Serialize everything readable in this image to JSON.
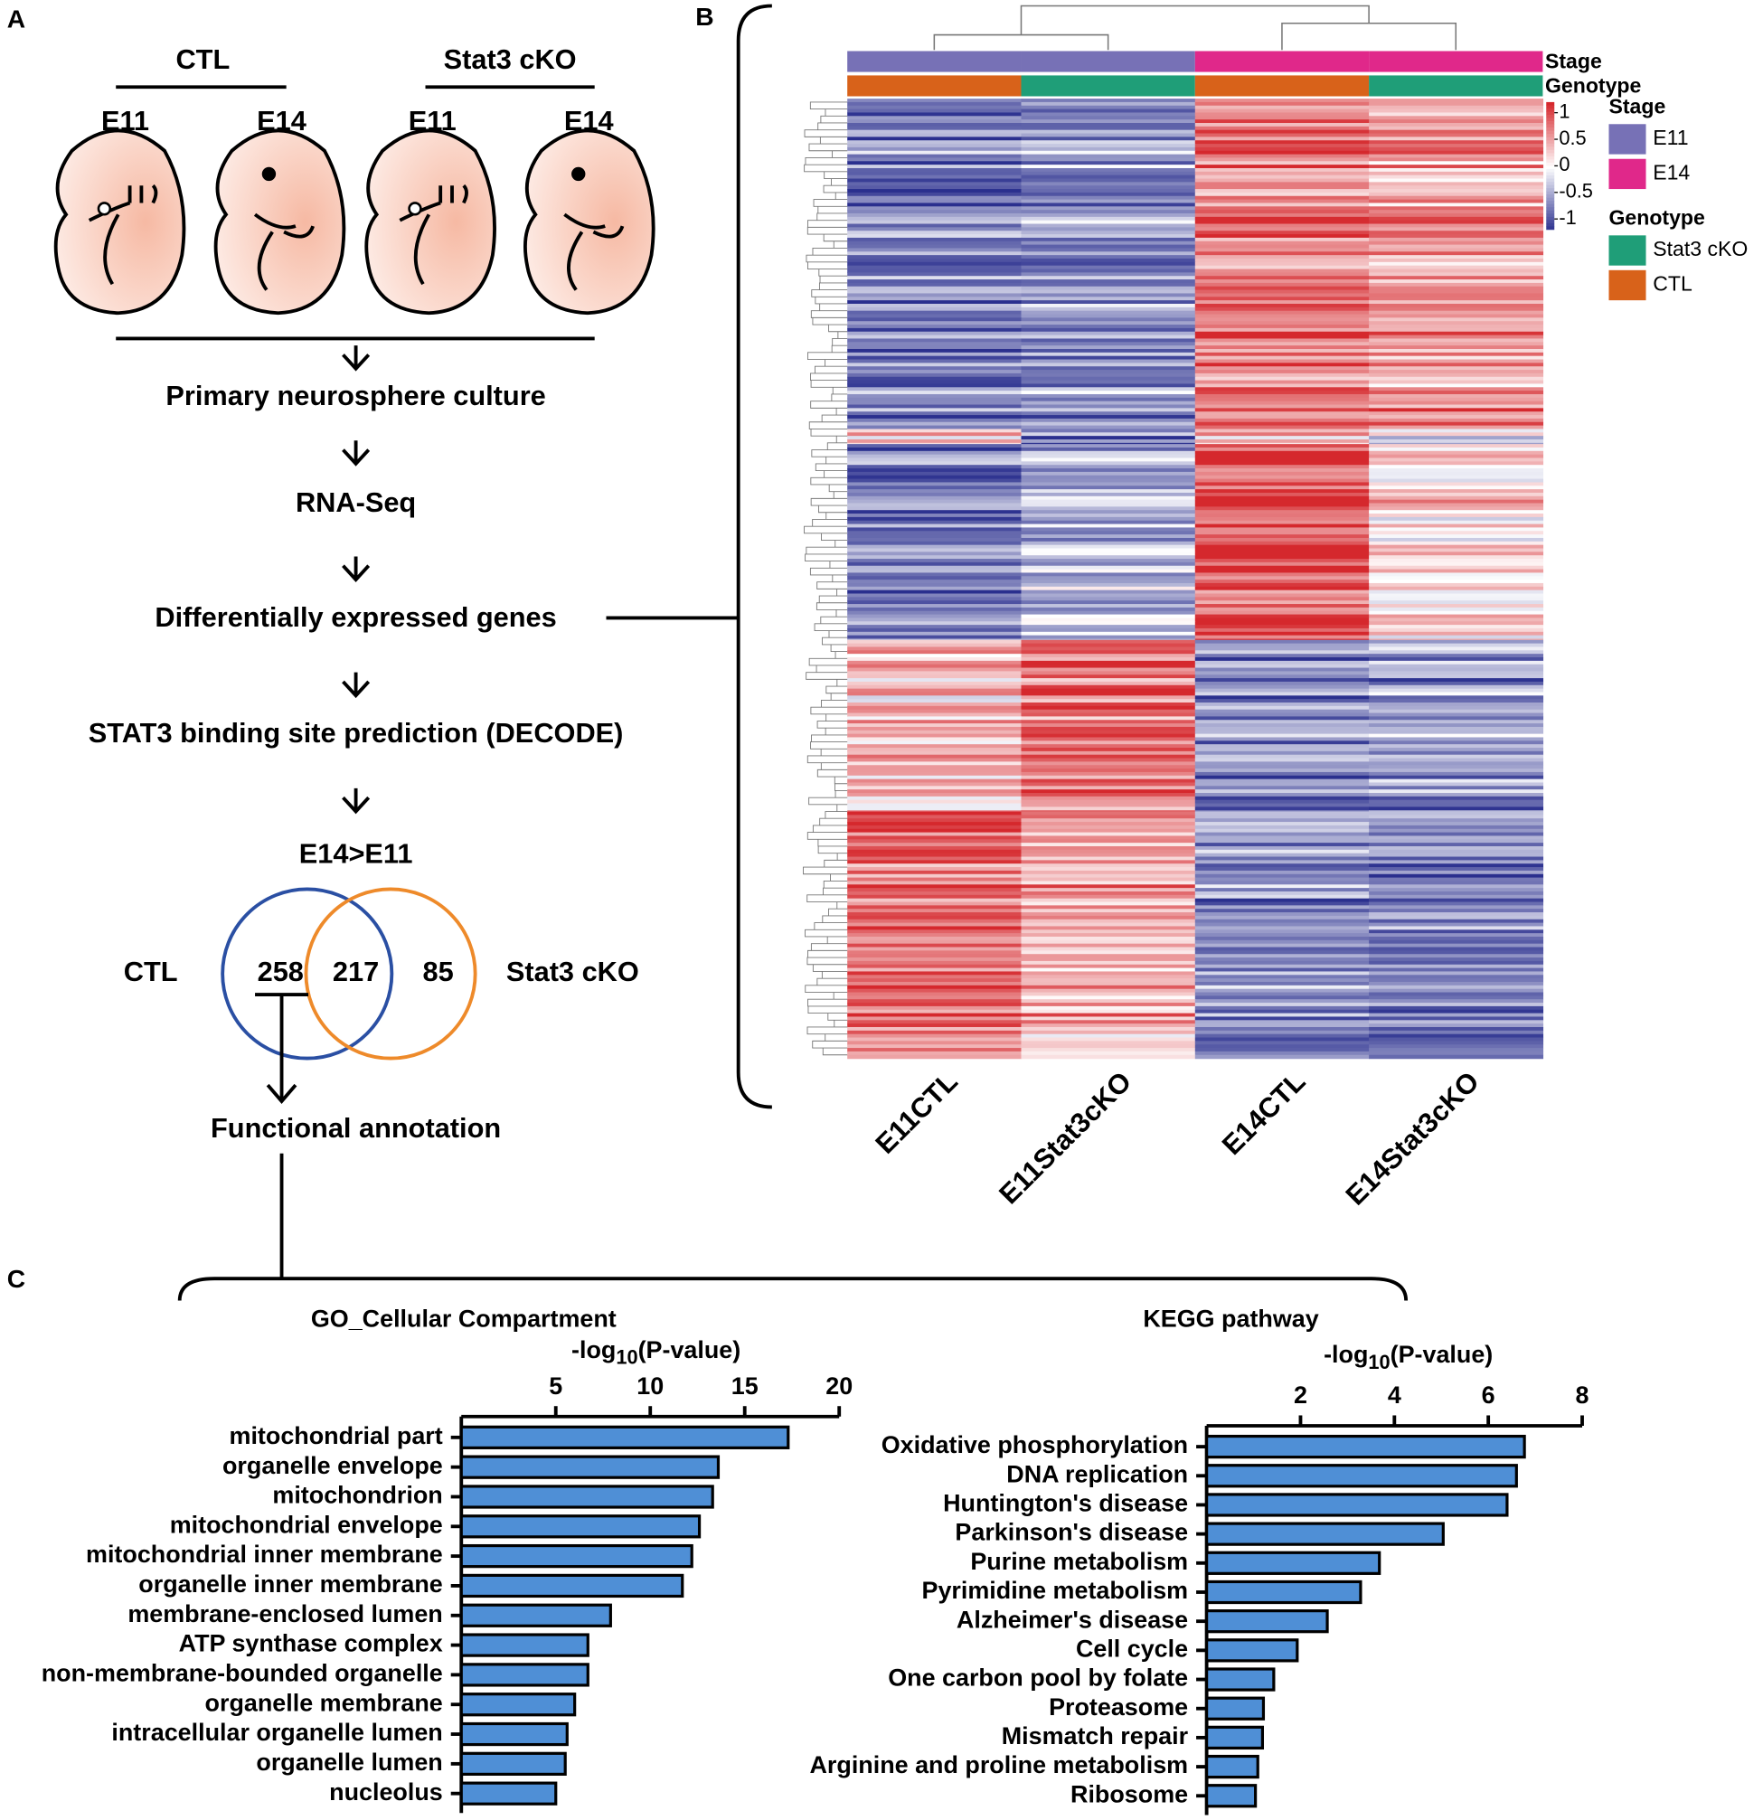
{
  "panels": {
    "a": "A",
    "b": "B",
    "c": "C"
  },
  "workflow": {
    "groups": [
      "CTL",
      "Stat3 cKO"
    ],
    "stages": [
      "E11",
      "E14",
      "E11",
      "E14"
    ],
    "steps": [
      "Primary neurosphere culture",
      "RNA-Seq",
      "Differentially expressed genes",
      "STAT3 binding site prediction (DECODE)"
    ],
    "venn": {
      "title": "E14>E11",
      "left_label": "CTL",
      "right_label": "Stat3 cKO",
      "left_only": 258,
      "both": 217,
      "right_only": 85
    },
    "annotation": "Functional annotation"
  },
  "chart_data": [
    {
      "type": "heatmap",
      "categories": [
        "E11CTL",
        "E11Stat3cKO",
        "E14CTL",
        "E14Stat3cKO"
      ],
      "annotations": [
        {
          "name": "Stage",
          "levels": [
            {
              "name": "E11",
              "color": "#7771b6"
            },
            {
              "name": "E14",
              "color": "#e0288a"
            }
          ]
        },
        {
          "name": "Genotype",
          "levels": [
            {
              "name": "Stat3 cKO",
              "color": "#1f9e78"
            },
            {
              "name": "CTL",
              "color": "#d8621a"
            }
          ]
        }
      ],
      "colorbar": {
        "ticks": [
          1,
          0.5,
          0,
          -0.5,
          -1
        ],
        "low": "#2a2f8e",
        "mid": "#ffffff",
        "high": "#d5282d",
        "lim": [
          -1.2,
          1.2
        ]
      }
    },
    {
      "type": "barh",
      "title": "GO_Cellular Compartment",
      "x_label": [
        "-log",
        "10",
        "(P-value)"
      ],
      "color": "#4f8fd6",
      "categories": [
        "mitochondrial part",
        "organelle envelope",
        "mitochondrion",
        "mitochondrial envelope",
        "mitochondrial inner membrane",
        "organelle inner membrane",
        "membrane-enclosed lumen",
        "ATP synthase complex",
        "non-membrane-bounded organelle",
        "organelle membrane",
        "intracellular organelle lumen",
        "organelle lumen",
        "nucleolus"
      ],
      "values": [
        17.3,
        13.6,
        13.3,
        12.6,
        12.2,
        11.7,
        7.9,
        6.7,
        6.7,
        6.0,
        5.6,
        5.5,
        5.0
      ],
      "xlim": [
        0,
        20
      ],
      "xticks": [
        5,
        10,
        15,
        20
      ]
    },
    {
      "type": "barh",
      "title": "KEGG pathway",
      "x_label": [
        "-log",
        "10",
        "(P-value)"
      ],
      "color": "#4f8fd6",
      "categories": [
        "Oxidative phosphorylation",
        "DNA replication",
        "Huntington's disease",
        "Parkinson's disease",
        "Purine metabolism",
        "Pyrimidine metabolism",
        "Alzheimer's disease",
        "Cell cycle",
        "One carbon pool by folate",
        "Proteasome",
        "Mismatch repair",
        "Arginine and proline metabolism",
        "Ribosome"
      ],
      "values": [
        6.77,
        6.6,
        6.4,
        5.04,
        3.68,
        3.28,
        2.57,
        1.93,
        1.43,
        1.21,
        1.19,
        1.09,
        1.04
      ],
      "xlim": [
        0,
        8
      ],
      "xticks": [
        2,
        4,
        6,
        8
      ]
    }
  ]
}
